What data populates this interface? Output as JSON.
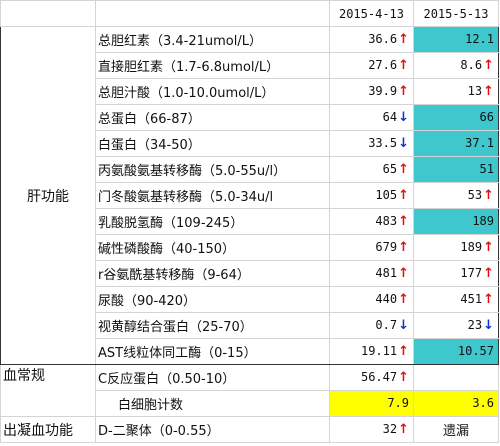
{
  "header": {
    "col_date1": "2015-4-13",
    "col_date2": "2015-5-13"
  },
  "categories": {
    "liver": "肝功能",
    "blood": "血常规",
    "coag": "出凝血功能"
  },
  "rows": [
    {
      "item": "总胆红素（3.4-21umol/L）",
      "v1": "36.6",
      "a1": "↑",
      "v2": "12.1",
      "a2": ""
    },
    {
      "item": "直接胆红素（1.7-6.8umol/L）",
      "v1": "27.6",
      "a1": "↑",
      "v2": "8.6",
      "a2": "↑"
    },
    {
      "item": "总胆汁酸（1.0-10.0umol/L）",
      "v1": "39.9",
      "a1": "↑",
      "v2": "13",
      "a2": "↑"
    },
    {
      "item": "总蛋白（66-87）",
      "v1": "64",
      "a1": "↓",
      "v2": "66",
      "a2": ""
    },
    {
      "item": "白蛋白（34-50）",
      "v1": "33.5",
      "a1": "↓",
      "v2": "37.1",
      "a2": ""
    },
    {
      "item": "丙氨酸氨基转移酶（5.0-55u/l）",
      "v1": "65",
      "a1": "↑",
      "v2": "51",
      "a2": ""
    },
    {
      "item": "门冬酸氨基转移酶（5.0-34u/l",
      "v1": "105",
      "a1": "↑",
      "v2": "53",
      "a2": "↑"
    },
    {
      "item": "乳酸脱氢酶（109-245）",
      "v1": "483",
      "a1": "↑",
      "v2": "189",
      "a2": ""
    },
    {
      "item": "碱性磷酸酶（40-150）",
      "v1": "679",
      "a1": "↑",
      "v2": "189",
      "a2": "↑"
    },
    {
      "item": "r谷氨酰基转移酶（9-64）",
      "v1": "481",
      "a1": "↑",
      "v2": "177",
      "a2": "↑"
    },
    {
      "item": "尿酸（90-420）",
      "v1": "440",
      "a1": "↑",
      "v2": "451",
      "a2": "↑"
    },
    {
      "item": "视黄醇结合蛋白（25-70）",
      "v1": "0.7",
      "a1": "↓",
      "v2": "23",
      "a2": "↓"
    },
    {
      "item": "AST线粒体同工酶（0-15）",
      "v1": "19.11",
      "a1": "↑",
      "v2": "10.57",
      "a2": ""
    },
    {
      "item": "C反应蛋白（0.50-10）",
      "v1": "56.47",
      "a1": "↑",
      "v2": "",
      "a2": ""
    },
    {
      "item": "白细胞计数",
      "v1": "7.9",
      "a1": "",
      "v2": "3.6",
      "a2": ""
    },
    {
      "item": "D-二聚体（0-0.55）",
      "v1": "32",
      "a1": "↑",
      "v2": "遗漏",
      "a2": ""
    }
  ],
  "colors": {
    "highlight_cyan": "#3ec7cc",
    "highlight_yellow": "#ffff00",
    "arrow_up": "#e01010",
    "arrow_down": "#1030d0"
  }
}
